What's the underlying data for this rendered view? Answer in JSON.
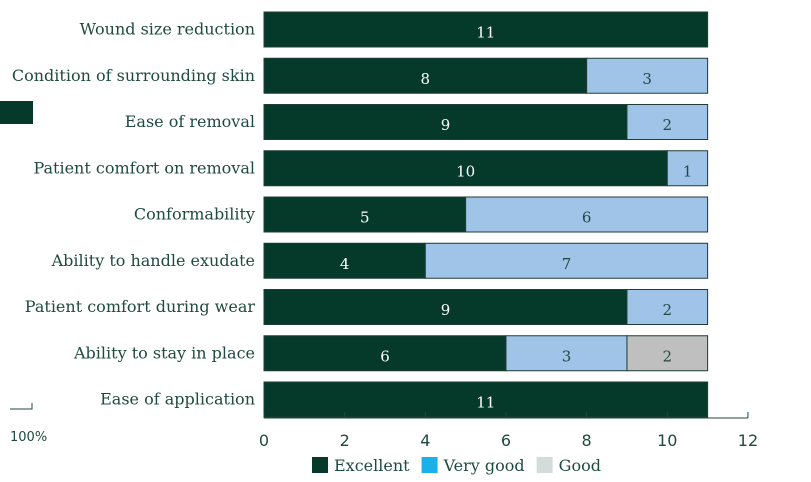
{
  "chart_data": {
    "type": "bar",
    "orientation": "horizontal",
    "stacked": true,
    "categories": [
      "Wound size reduction",
      "Condition of surrounding skin",
      "Ease of removal",
      "Patient comfort on removal",
      "Conformability",
      "Ability to handle exudate",
      "Patient comfort during wear",
      "Ability to stay in place",
      "Ease of application"
    ],
    "series": [
      {
        "name": "Excellent",
        "values": [
          11,
          8,
          9,
          10,
          5,
          4,
          9,
          6,
          11
        ]
      },
      {
        "name": "Very good",
        "values": [
          0,
          3,
          2,
          1,
          6,
          7,
          2,
          3,
          0
        ]
      },
      {
        "name": "Good",
        "values": [
          0,
          0,
          0,
          0,
          0,
          0,
          0,
          2,
          0
        ]
      }
    ],
    "xlim": [
      0,
      12
    ],
    "xticks": [
      0,
      2,
      4,
      6,
      8,
      10,
      12
    ],
    "legend_position": "bottom",
    "bar_colors": [
      "#053a2b",
      "#a0c3e8",
      "#bfbfbf"
    ],
    "legend_colors": [
      "#053a2b",
      "#1ab0e8",
      "#d4dcdb"
    ],
    "label_colors": [
      "#ffffff",
      "#1f4a3f",
      "#1f4a3f"
    ]
  },
  "side_fragment": {
    "label": "100%",
    "swatch_color": "#053a2b"
  }
}
